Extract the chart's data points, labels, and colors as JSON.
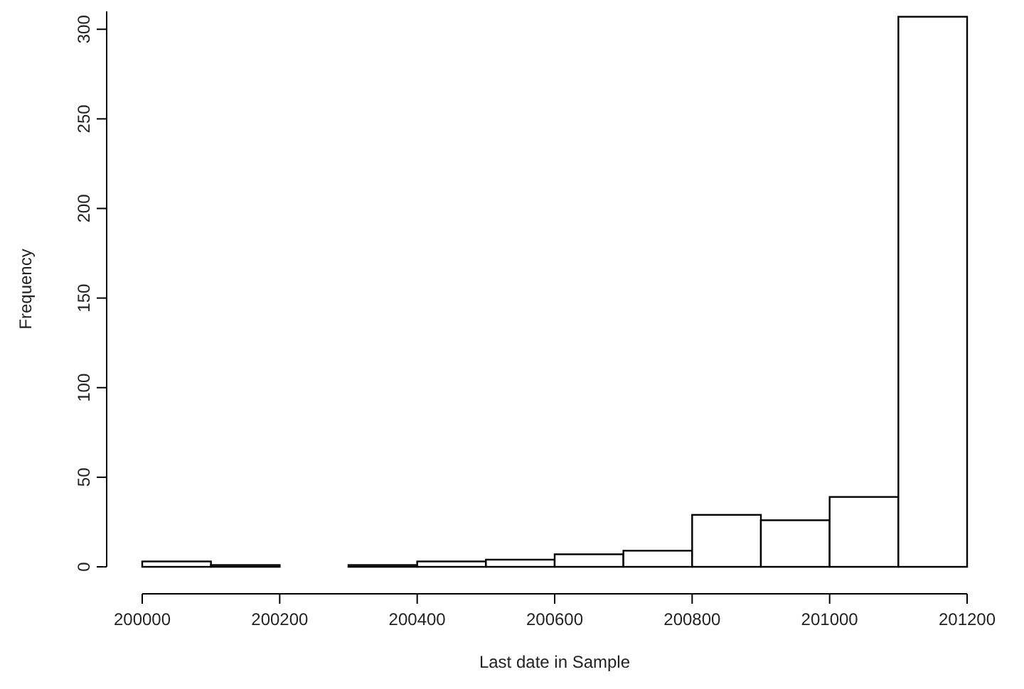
{
  "chart_data": {
    "type": "histogram",
    "xlabel": "Last date in Sample",
    "ylabel": "Frequency",
    "bins": [
      200000,
      200100,
      200200,
      200300,
      200400,
      200500,
      200600,
      200700,
      200800,
      200900,
      201000,
      201100,
      201200
    ],
    "values": [
      3,
      1,
      0,
      1,
      3,
      4,
      7,
      9,
      29,
      26,
      39,
      307
    ],
    "color": "#ffffff",
    "xlim": [
      200000,
      201200
    ],
    "xticks": [
      200000,
      200200,
      200400,
      200600,
      200800,
      201000,
      201200
    ],
    "ylim": [
      0,
      310
    ],
    "yticks": [
      0,
      50,
      100,
      150,
      200,
      250,
      300
    ]
  }
}
